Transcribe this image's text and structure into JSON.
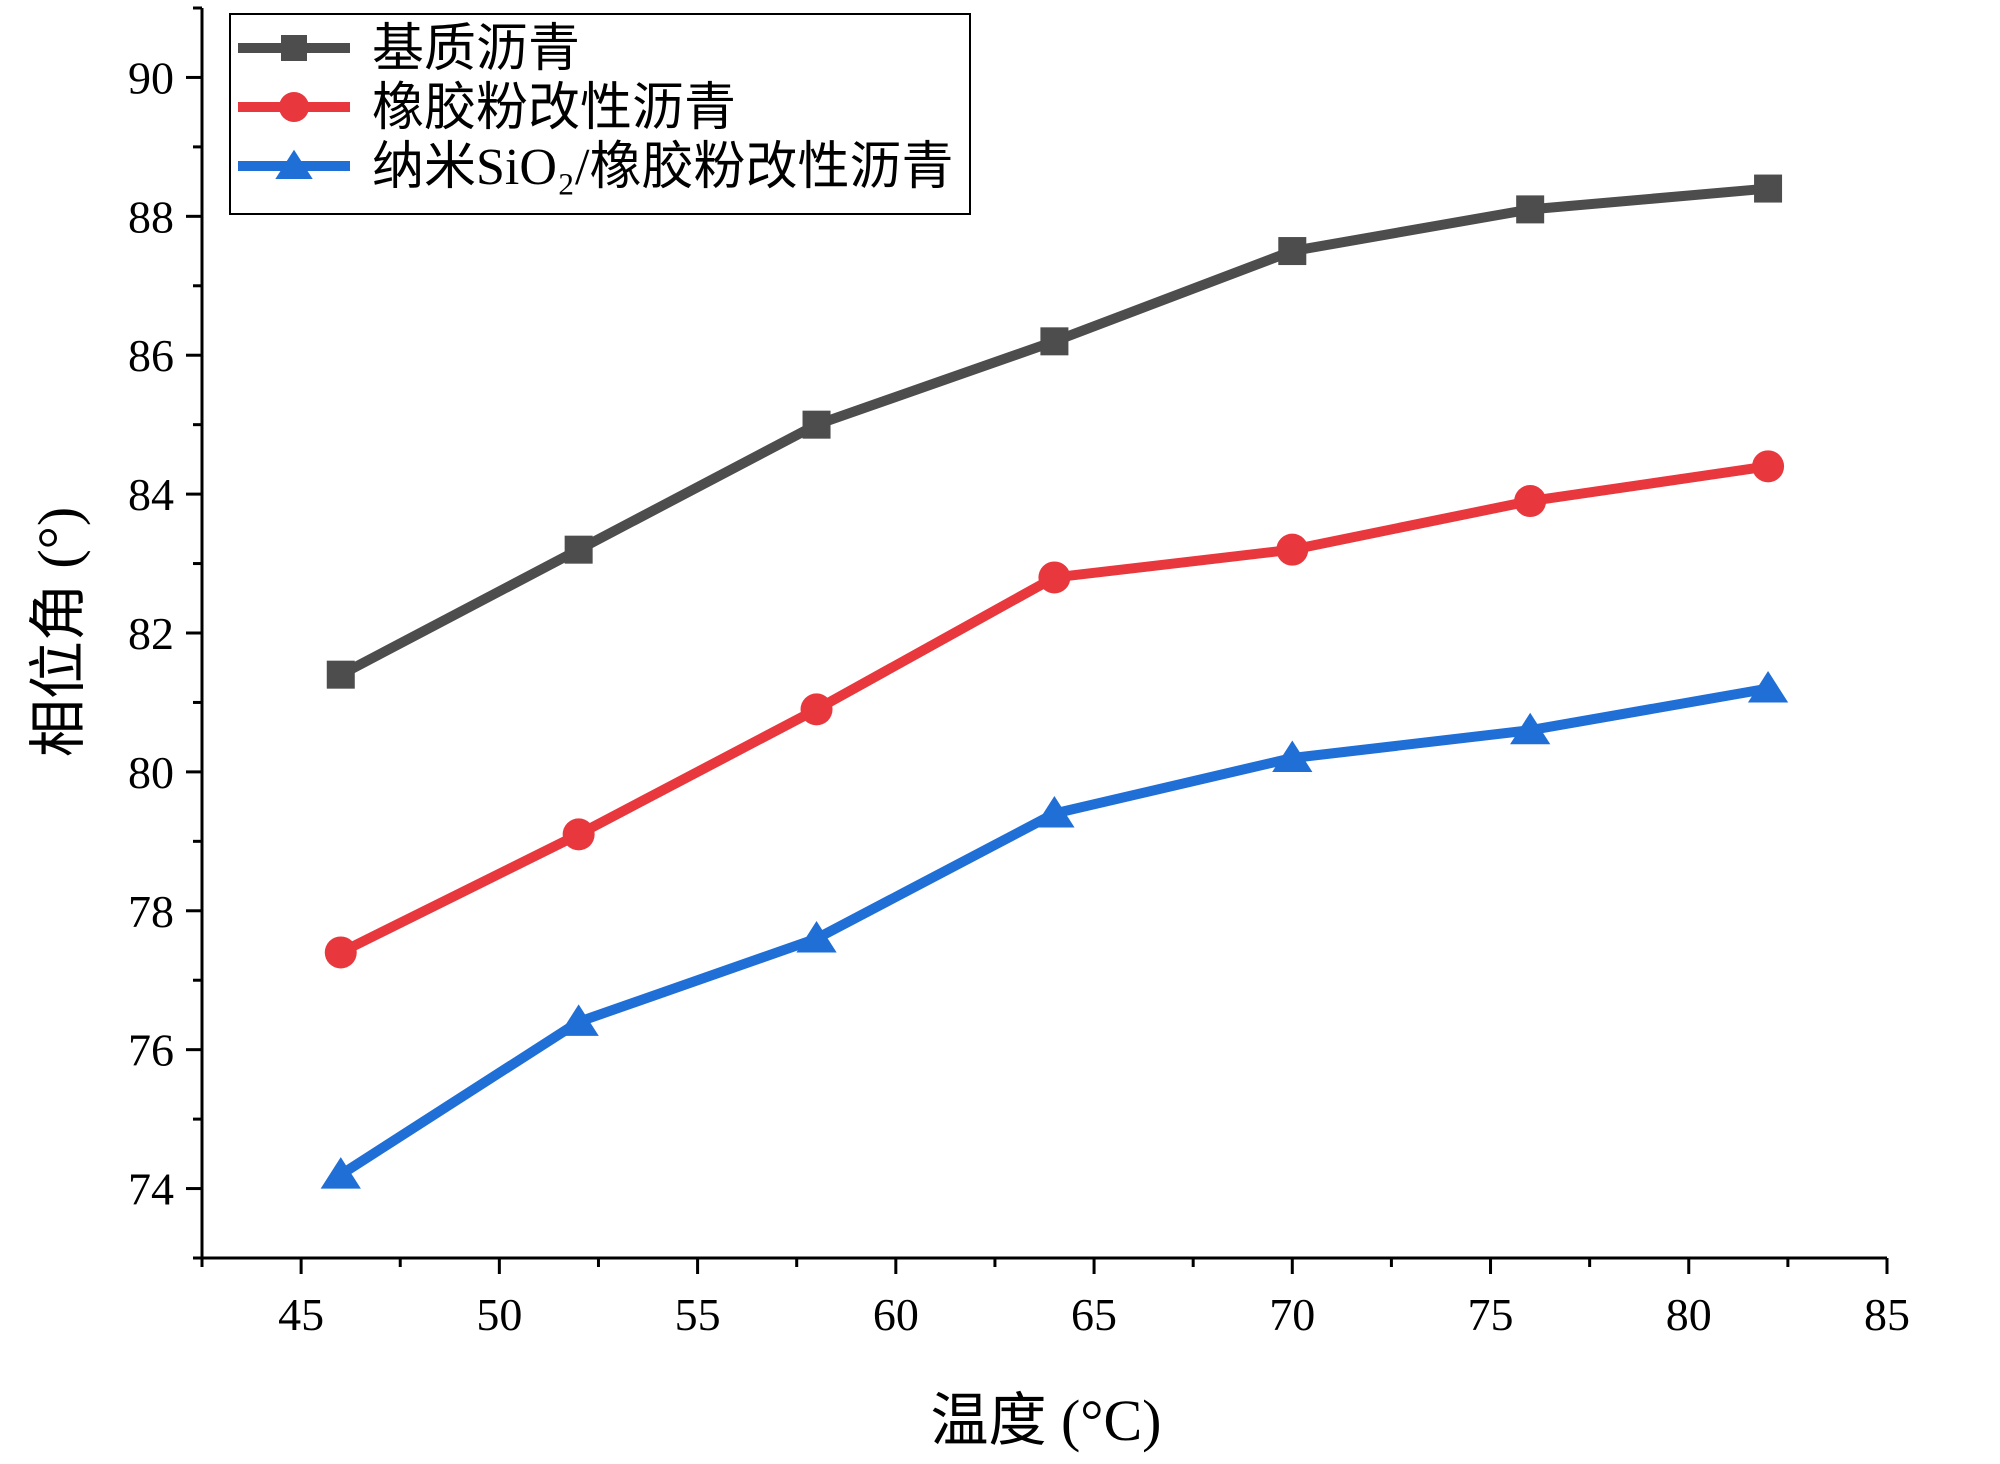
{
  "chart_data": {
    "type": "line",
    "title": "",
    "xlabel": "温度 (°C)",
    "ylabel": "相位角 (°)",
    "xlim": [
      42.5,
      85
    ],
    "ylim": [
      73,
      91
    ],
    "xticks": [
      45,
      50,
      55,
      60,
      65,
      70,
      75,
      80,
      85
    ],
    "yticks": [
      74,
      76,
      78,
      80,
      82,
      84,
      86,
      88,
      90
    ],
    "legend_position": "top-left",
    "x": [
      46,
      52,
      58,
      64,
      70,
      76,
      82
    ],
    "series": [
      {
        "name": "基质沥青",
        "color": "#4d4d4d",
        "marker": "square",
        "values": [
          81.4,
          83.2,
          85.0,
          86.2,
          87.5,
          88.1,
          88.4
        ]
      },
      {
        "name": "橡胶粉改性沥青",
        "color": "#e8383d",
        "marker": "circle",
        "values": [
          77.4,
          79.1,
          80.9,
          82.8,
          83.2,
          83.9,
          84.4
        ]
      },
      {
        "name": "纳米SiO₂/橡胶粉改性沥青",
        "color": "#1f6fd6",
        "marker": "triangle",
        "values": [
          74.2,
          76.4,
          77.6,
          79.4,
          80.2,
          80.6,
          81.2
        ]
      }
    ]
  }
}
